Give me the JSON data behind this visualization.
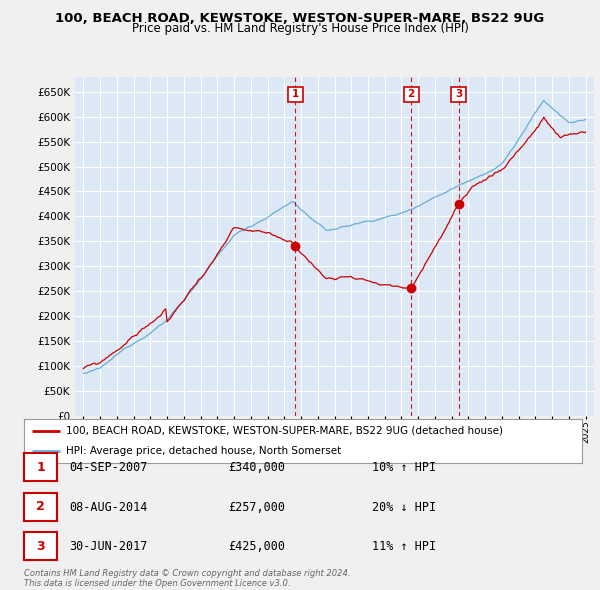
{
  "title_line1": "100, BEACH ROAD, KEWSTOKE, WESTON-SUPER-MARE, BS22 9UG",
  "title_line2": "Price paid vs. HM Land Registry's House Price Index (HPI)",
  "plot_bg_color": "#dce8f5",
  "fig_bg_color": "#f0f0f0",
  "red_color": "#cc0000",
  "blue_color": "#6aadd5",
  "grid_color": "#ffffff",
  "ylim_min": 0,
  "ylim_max": 680000,
  "yticks": [
    0,
    50000,
    100000,
    150000,
    200000,
    250000,
    300000,
    350000,
    400000,
    450000,
    500000,
    550000,
    600000,
    650000
  ],
  "sale_year_1": 2007.67,
  "sale_year_2": 2014.58,
  "sale_year_3": 2017.42,
  "sale_price_1": 340000,
  "sale_price_2": 257000,
  "sale_price_3": 425000,
  "legend_red": "100, BEACH ROAD, KEWSTOKE, WESTON-SUPER-MARE, BS22 9UG (detached house)",
  "legend_blue": "HPI: Average price, detached house, North Somerset",
  "table_rows": [
    {
      "num": "1",
      "date": "04-SEP-2007",
      "price": "£340,000",
      "change": "10% ↑ HPI"
    },
    {
      "num": "2",
      "date": "08-AUG-2014",
      "price": "£257,000",
      "change": "20% ↓ HPI"
    },
    {
      "num": "3",
      "date": "30-JUN-2017",
      "price": "£425,000",
      "change": "11% ↑ HPI"
    }
  ],
  "footnote": "Contains HM Land Registry data © Crown copyright and database right 2024.\nThis data is licensed under the Open Government Licence v3.0."
}
